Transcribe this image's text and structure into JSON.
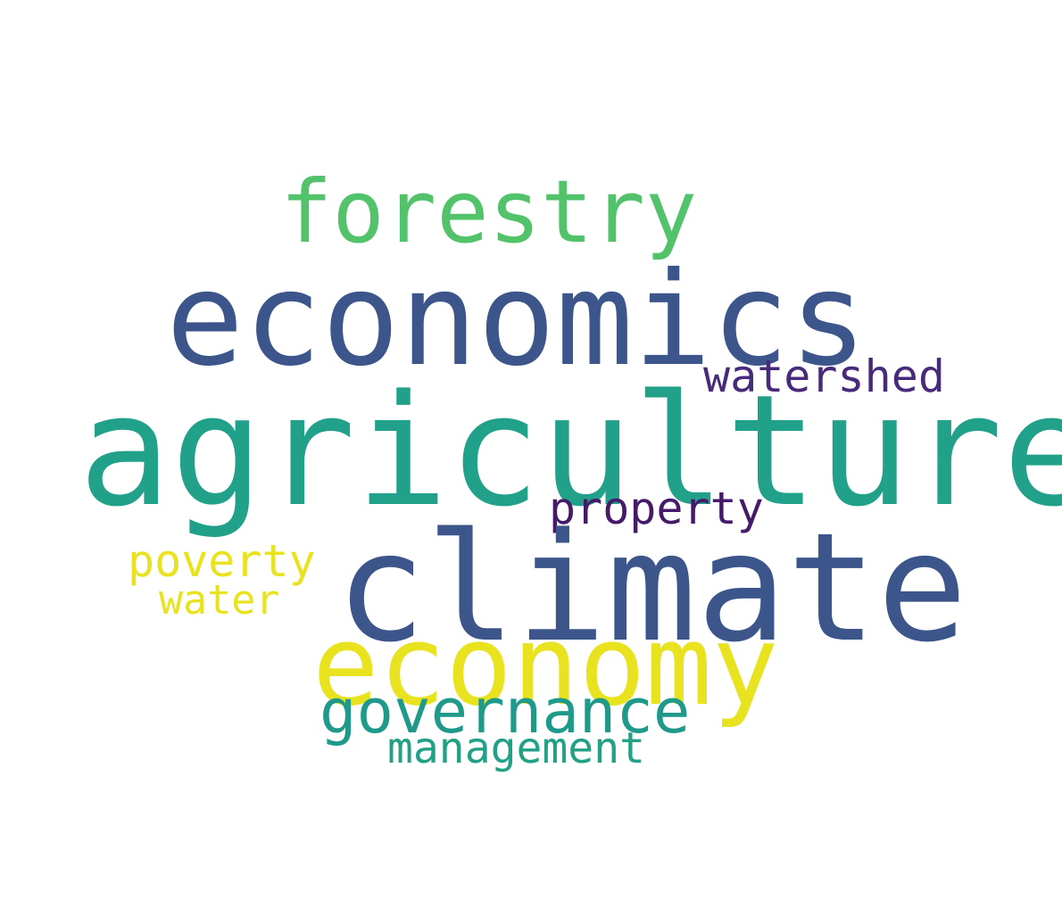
{
  "word_cloud": {
    "background": "#ffffff",
    "words": [
      {
        "id": "agriculture",
        "text": "agriculture",
        "color": "#21a08a"
      },
      {
        "id": "economics",
        "text": "economics",
        "color": "#3c568b"
      },
      {
        "id": "climate",
        "text": "climate",
        "color": "#3c568b"
      },
      {
        "id": "economy",
        "text": "economy",
        "color": "#e8e31e"
      },
      {
        "id": "forestry",
        "text": "forestry",
        "color": "#52c36a"
      },
      {
        "id": "governance",
        "text": "governance",
        "color": "#1f9a8a"
      },
      {
        "id": "watershed",
        "text": "watershed",
        "color": "#472b7a"
      },
      {
        "id": "property",
        "text": "property",
        "color": "#451b69"
      },
      {
        "id": "poverty",
        "text": "poverty",
        "color": "#e8e31e"
      },
      {
        "id": "water",
        "text": "water",
        "color": "#e8e31e"
      },
      {
        "id": "management",
        "text": "management",
        "color": "#22a186"
      }
    ]
  }
}
